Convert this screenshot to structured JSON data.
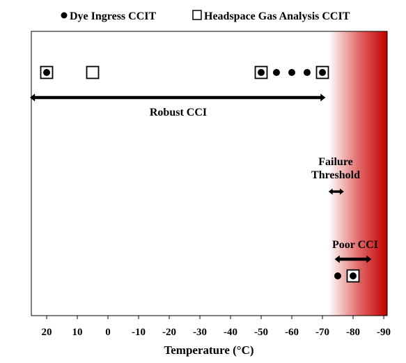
{
  "chart_data": {
    "type": "scatter",
    "legend": {
      "position": "top",
      "entries": [
        {
          "label": "Dye Ingress CCIT",
          "marker": "filled-circle"
        },
        {
          "label": "Headspace Gas Analysis CCIT",
          "marker": "open-square"
        }
      ]
    },
    "xlabel": "Temperature (°C)",
    "ylabel": "",
    "x_axis_reversed": true,
    "xlim": [
      25,
      -90
    ],
    "x_ticks": [
      20,
      10,
      0,
      -10,
      -20,
      -30,
      -40,
      -50,
      -60,
      -70,
      -80,
      -90
    ],
    "x_tick_labels": [
      "20",
      "10",
      "0",
      "-10",
      "-20",
      "-30",
      "-40",
      "-50",
      "-60",
      "-70",
      "-80",
      "-90"
    ],
    "grid": false,
    "series": [
      {
        "name": "Dye Ingress CCIT",
        "marker": "filled-circle",
        "points": [
          {
            "x": 20,
            "row": "robust"
          },
          {
            "x": -50,
            "row": "robust"
          },
          {
            "x": -55,
            "row": "robust"
          },
          {
            "x": -60,
            "row": "robust"
          },
          {
            "x": -65,
            "row": "robust"
          },
          {
            "x": -70,
            "row": "robust"
          },
          {
            "x": -75,
            "row": "poor"
          },
          {
            "x": -80,
            "row": "poor"
          }
        ]
      },
      {
        "name": "Headspace Gas Analysis CCIT",
        "marker": "open-square",
        "points": [
          {
            "x": 20,
            "row": "robust"
          },
          {
            "x": 5,
            "row": "robust"
          },
          {
            "x": -50,
            "row": "robust"
          },
          {
            "x": -70,
            "row": "robust"
          },
          {
            "x": -80,
            "row": "poor"
          }
        ]
      }
    ],
    "annotations": [
      {
        "label": "Robust CCI",
        "range": [
          25,
          -71
        ],
        "row": "robust"
      },
      {
        "label_lines": [
          "Failure",
          "Threshold"
        ],
        "range": [
          -72,
          -77
        ],
        "row": "threshold"
      },
      {
        "label": "Poor CCI",
        "range": [
          -74,
          -86
        ],
        "row": "poor"
      }
    ],
    "failure_region": {
      "from": -72,
      "to": -90,
      "color_start": "#ffffff",
      "color_end": "#c00000"
    }
  }
}
